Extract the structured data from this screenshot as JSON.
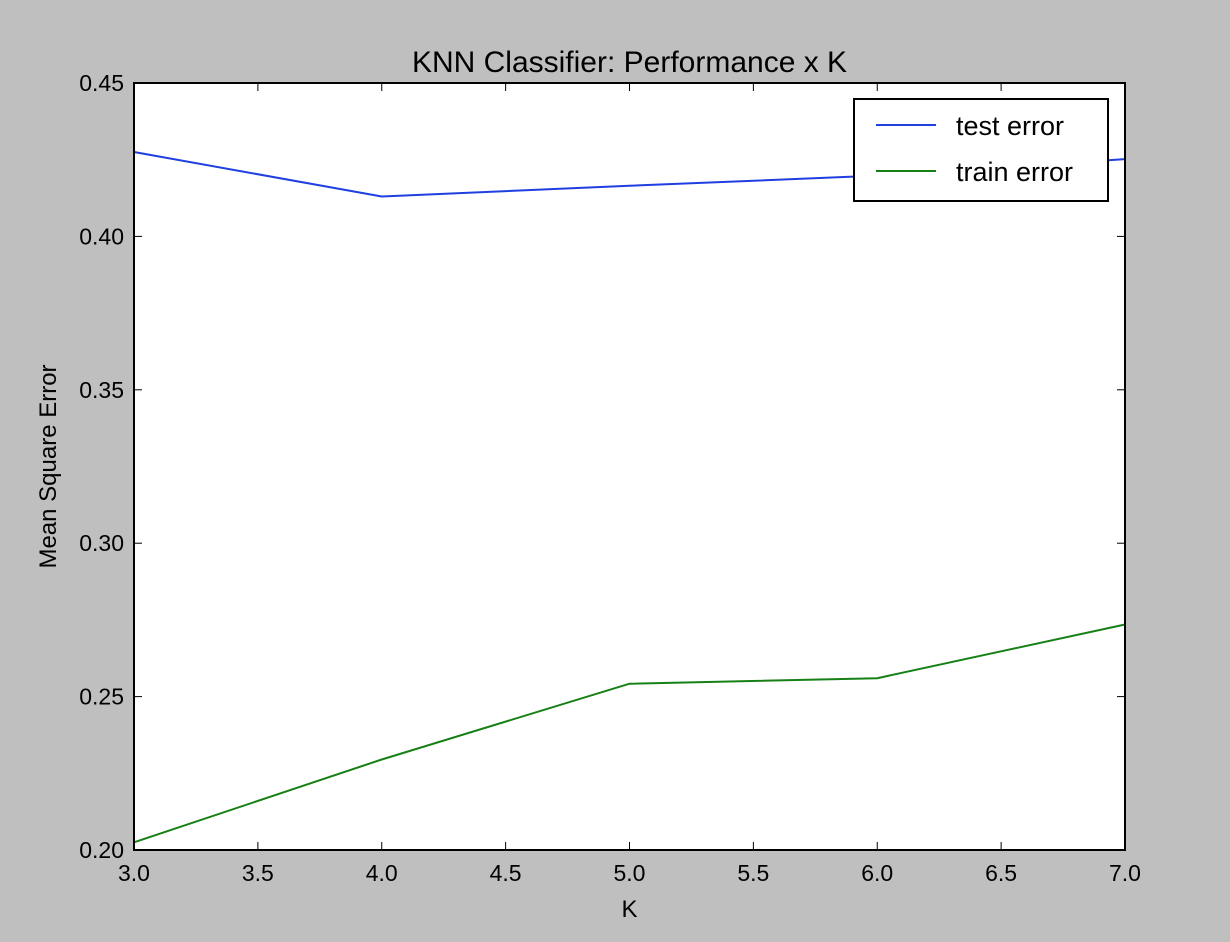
{
  "chart_data": {
    "type": "line",
    "title": "KNN Classifier: Performance x K",
    "xlabel": "K",
    "ylabel": "Mean Square Error",
    "xlim": [
      3.0,
      7.0
    ],
    "ylim": [
      0.2,
      0.45
    ],
    "xticks": [
      "3.0",
      "3.5",
      "4.0",
      "4.5",
      "5.0",
      "5.5",
      "6.0",
      "6.5",
      "7.0"
    ],
    "yticks": [
      "0.20",
      "0.25",
      "0.30",
      "0.35",
      "0.40",
      "0.45"
    ],
    "grid": false,
    "legend_position": "top-right",
    "x": [
      3,
      4,
      5,
      6,
      7
    ],
    "series": [
      {
        "name": "test error",
        "color": "#1f3fe0",
        "values": [
          0.4275,
          0.413,
          0.4165,
          0.4198,
          0.4252
        ]
      },
      {
        "name": "train error",
        "color": "#168016",
        "values": [
          0.2025,
          0.2295,
          0.2542,
          0.256,
          0.2735
        ]
      }
    ]
  }
}
